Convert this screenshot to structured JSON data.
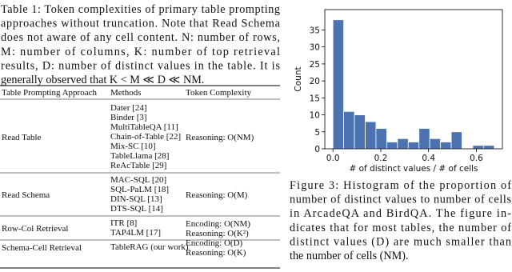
{
  "table_caption": [
    "Table 1: Token complexities of primary table prompting",
    "approaches without truncation. Note that Read Schema",
    "does not aware of any cell content. N: number of rows,",
    "M: number of columns, K: number of top retrieval",
    "results, D: number of distinct values in the table. It is",
    "generally observed that K < M ≪ D ≪ NM."
  ],
  "table": {
    "header": [
      "Table Prompting Approach",
      "Methods",
      "Token Complexity"
    ],
    "rows": [
      {
        "approach": "Read Table",
        "methods": [
          "Dater [24]",
          "Binder [3]",
          "MultiTableQA [11]",
          "Chain-of-Table [22]",
          "Mix-SC [10]",
          "TableLlama [28]",
          "ReAcTable [29]"
        ],
        "complexity": [
          "Reasoning: O(NM)"
        ]
      },
      {
        "approach": "Read Schema",
        "methods": [
          "MAC-SQL [20]",
          "SQL-PaLM [18]",
          "DIN-SQL [13]",
          "DTS-SQL [14]"
        ],
        "complexity": [
          "Reasoning: O(M)"
        ]
      },
      {
        "approach": "Row-Col Retrieval",
        "methods": [
          "ITR [8]",
          "TAP4LM [17]"
        ],
        "complexity": [
          "Encoding: O(NM)",
          "Reasoning: O(K²)"
        ]
      },
      {
        "approach": "Schema-Cell Retrieval",
        "methods": [
          "TableRAG (our work)"
        ],
        "complexity": [
          "Encoding: O(D)",
          "Reasoning: O(K)"
        ]
      }
    ]
  },
  "chart_data": {
    "type": "histogram",
    "xlabel": "# of distinct values / # of cells",
    "ylabel": "Count",
    "color": "#4c72b0",
    "bins": [
      0,
      0.045,
      0.09,
      0.135,
      0.18,
      0.225,
      0.27,
      0.315,
      0.36,
      0.405,
      0.45,
      0.495,
      0.54,
      0.585,
      0.63,
      0.675
    ],
    "values": [
      38,
      11,
      10,
      8,
      6,
      2,
      3,
      2,
      6,
      3,
      2,
      5,
      0,
      1,
      1
    ],
    "xlim": [
      -0.034,
      0.709
    ],
    "ylim": [
      0,
      41
    ],
    "xticks": [
      {
        "value": 0,
        "label": "0.0"
      },
      {
        "value": 0.2,
        "label": "0.2"
      },
      {
        "value": 0.4,
        "label": "0.4"
      },
      {
        "value": 0.6,
        "label": "0.6"
      }
    ],
    "yticks": [
      0,
      5,
      10,
      15,
      20,
      25,
      30,
      35
    ]
  },
  "figure_caption": [
    "Figure 3: Histogram of the proportion of",
    "number of distinct values to number of cells",
    "in ArcadeQA and BirdQA. The figure in-",
    "dicates that for most tables, the number of",
    "distinct values (D) are much smaller than",
    "the number of cells (NM)."
  ]
}
